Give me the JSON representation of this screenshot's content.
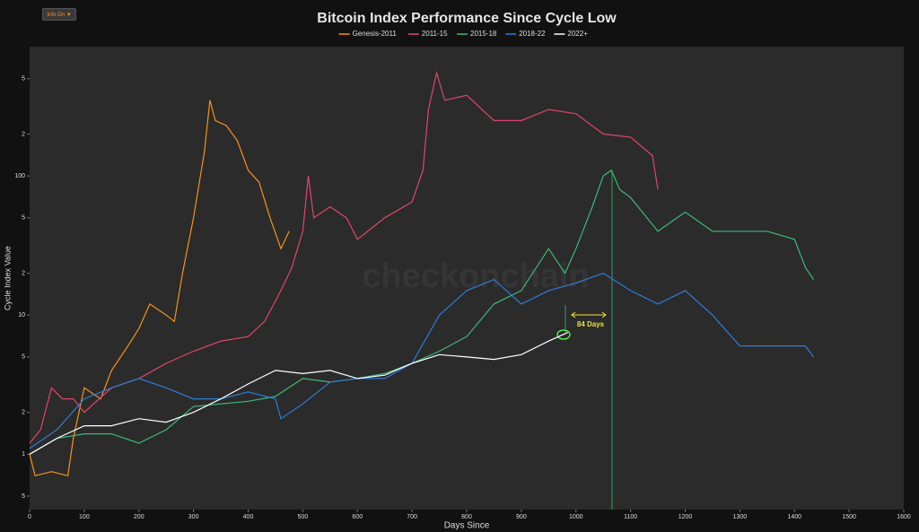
{
  "button": "Info On ▼",
  "chart_data": {
    "type": "line",
    "title": "Bitcoin Index Performance Since Cycle Low",
    "x_label": "Days Since",
    "y_label": "Cycle Index Value",
    "watermark": "checkonchain",
    "annotation": "84 Days",
    "log_y": true,
    "grid": false,
    "legend": "top",
    "xlim": [
      0,
      1600
    ],
    "xticks": [
      0,
      100,
      200,
      300,
      400,
      500,
      600,
      700,
      800,
      900,
      1000,
      1100,
      1200,
      1300,
      1400,
      1500,
      1600
    ],
    "ylim": [
      0.4,
      850
    ],
    "yticks": [
      {
        "value": 0.5,
        "label": "5"
      },
      1,
      2,
      5,
      10,
      {
        "value": 20,
        "label": "2"
      },
      {
        "value": 50,
        "label": "5"
      },
      100,
      {
        "value": 200,
        "label": "2"
      },
      {
        "value": 500,
        "label": "5"
      }
    ],
    "series": [
      {
        "name": "Genesis-2011",
        "color": "#f7931a",
        "x": [
          0,
          10,
          40,
          70,
          80,
          100,
          130,
          150,
          180,
          200,
          220,
          250,
          265,
          280,
          300,
          320,
          330,
          340,
          360,
          380,
          400,
          420,
          440,
          460,
          475
        ],
        "values": [
          1,
          0.7,
          0.75,
          0.7,
          1.3,
          3,
          2.5,
          4,
          6,
          8,
          12,
          10,
          9,
          20,
          50,
          150,
          350,
          250,
          230,
          180,
          110,
          90,
          50,
          30,
          40
        ]
      },
      {
        "name": "2011-15",
        "color": "#e0456a",
        "x": [
          0,
          20,
          40,
          60,
          80,
          100,
          150,
          200,
          250,
          300,
          350,
          400,
          430,
          460,
          480,
          500,
          510,
          520,
          550,
          580,
          600,
          650,
          700,
          720,
          730,
          745,
          760,
          800,
          850,
          900,
          950,
          1000,
          1050,
          1100,
          1140,
          1150
        ],
        "values": [
          1.2,
          1.5,
          3,
          2.5,
          2.5,
          2,
          3,
          3.5,
          4.5,
          5.5,
          6.5,
          7,
          9,
          15,
          22,
          40,
          100,
          50,
          60,
          50,
          35,
          50,
          65,
          110,
          300,
          550,
          350,
          380,
          250,
          250,
          300,
          280,
          200,
          190,
          140,
          80
        ]
      },
      {
        "name": "2015-18",
        "color": "#3cb878",
        "x": [
          0,
          50,
          100,
          150,
          200,
          250,
          300,
          350,
          400,
          450,
          500,
          550,
          600,
          650,
          700,
          750,
          800,
          850,
          900,
          950,
          980,
          1000,
          1030,
          1050,
          1065,
          1080,
          1100,
          1150,
          1200,
          1250,
          1300,
          1350,
          1400,
          1420,
          1435
        ],
        "values": [
          1,
          1.3,
          1.4,
          1.4,
          1.2,
          1.5,
          2.2,
          2.3,
          2.4,
          2.6,
          3.5,
          3.3,
          3.5,
          3.8,
          4.5,
          5.5,
          7,
          12,
          15,
          30,
          20,
          30,
          60,
          100,
          110,
          80,
          70,
          40,
          55,
          40,
          40,
          40,
          35,
          22,
          18
        ]
      },
      {
        "name": "2018-22",
        "color": "#2f7bd8",
        "x": [
          0,
          50,
          100,
          150,
          200,
          250,
          300,
          350,
          400,
          450,
          460,
          500,
          550,
          600,
          650,
          700,
          750,
          800,
          850,
          900,
          950,
          1000,
          1050,
          1100,
          1150,
          1200,
          1250,
          1300,
          1350,
          1400,
          1420,
          1435
        ],
        "values": [
          1.1,
          1.5,
          2.5,
          3,
          3.5,
          3,
          2.5,
          2.5,
          2.8,
          2.5,
          1.8,
          2.3,
          3.3,
          3.5,
          3.5,
          4.5,
          10,
          15,
          18,
          12,
          15,
          17,
          20,
          15,
          12,
          15,
          10,
          6,
          6,
          6,
          6,
          5
        ]
      },
      {
        "name": "2022+",
        "color": "#ffffff",
        "x": [
          0,
          50,
          100,
          150,
          200,
          250,
          300,
          350,
          400,
          450,
          500,
          550,
          600,
          650,
          700,
          750,
          800,
          850,
          900,
          950,
          985
        ],
        "values": [
          1,
          1.3,
          1.6,
          1.6,
          1.8,
          1.7,
          2,
          2.5,
          3.2,
          4,
          3.8,
          4,
          3.5,
          3.7,
          4.5,
          5.2,
          5,
          4.8,
          5.2,
          6.5,
          7.5
        ]
      }
    ]
  }
}
